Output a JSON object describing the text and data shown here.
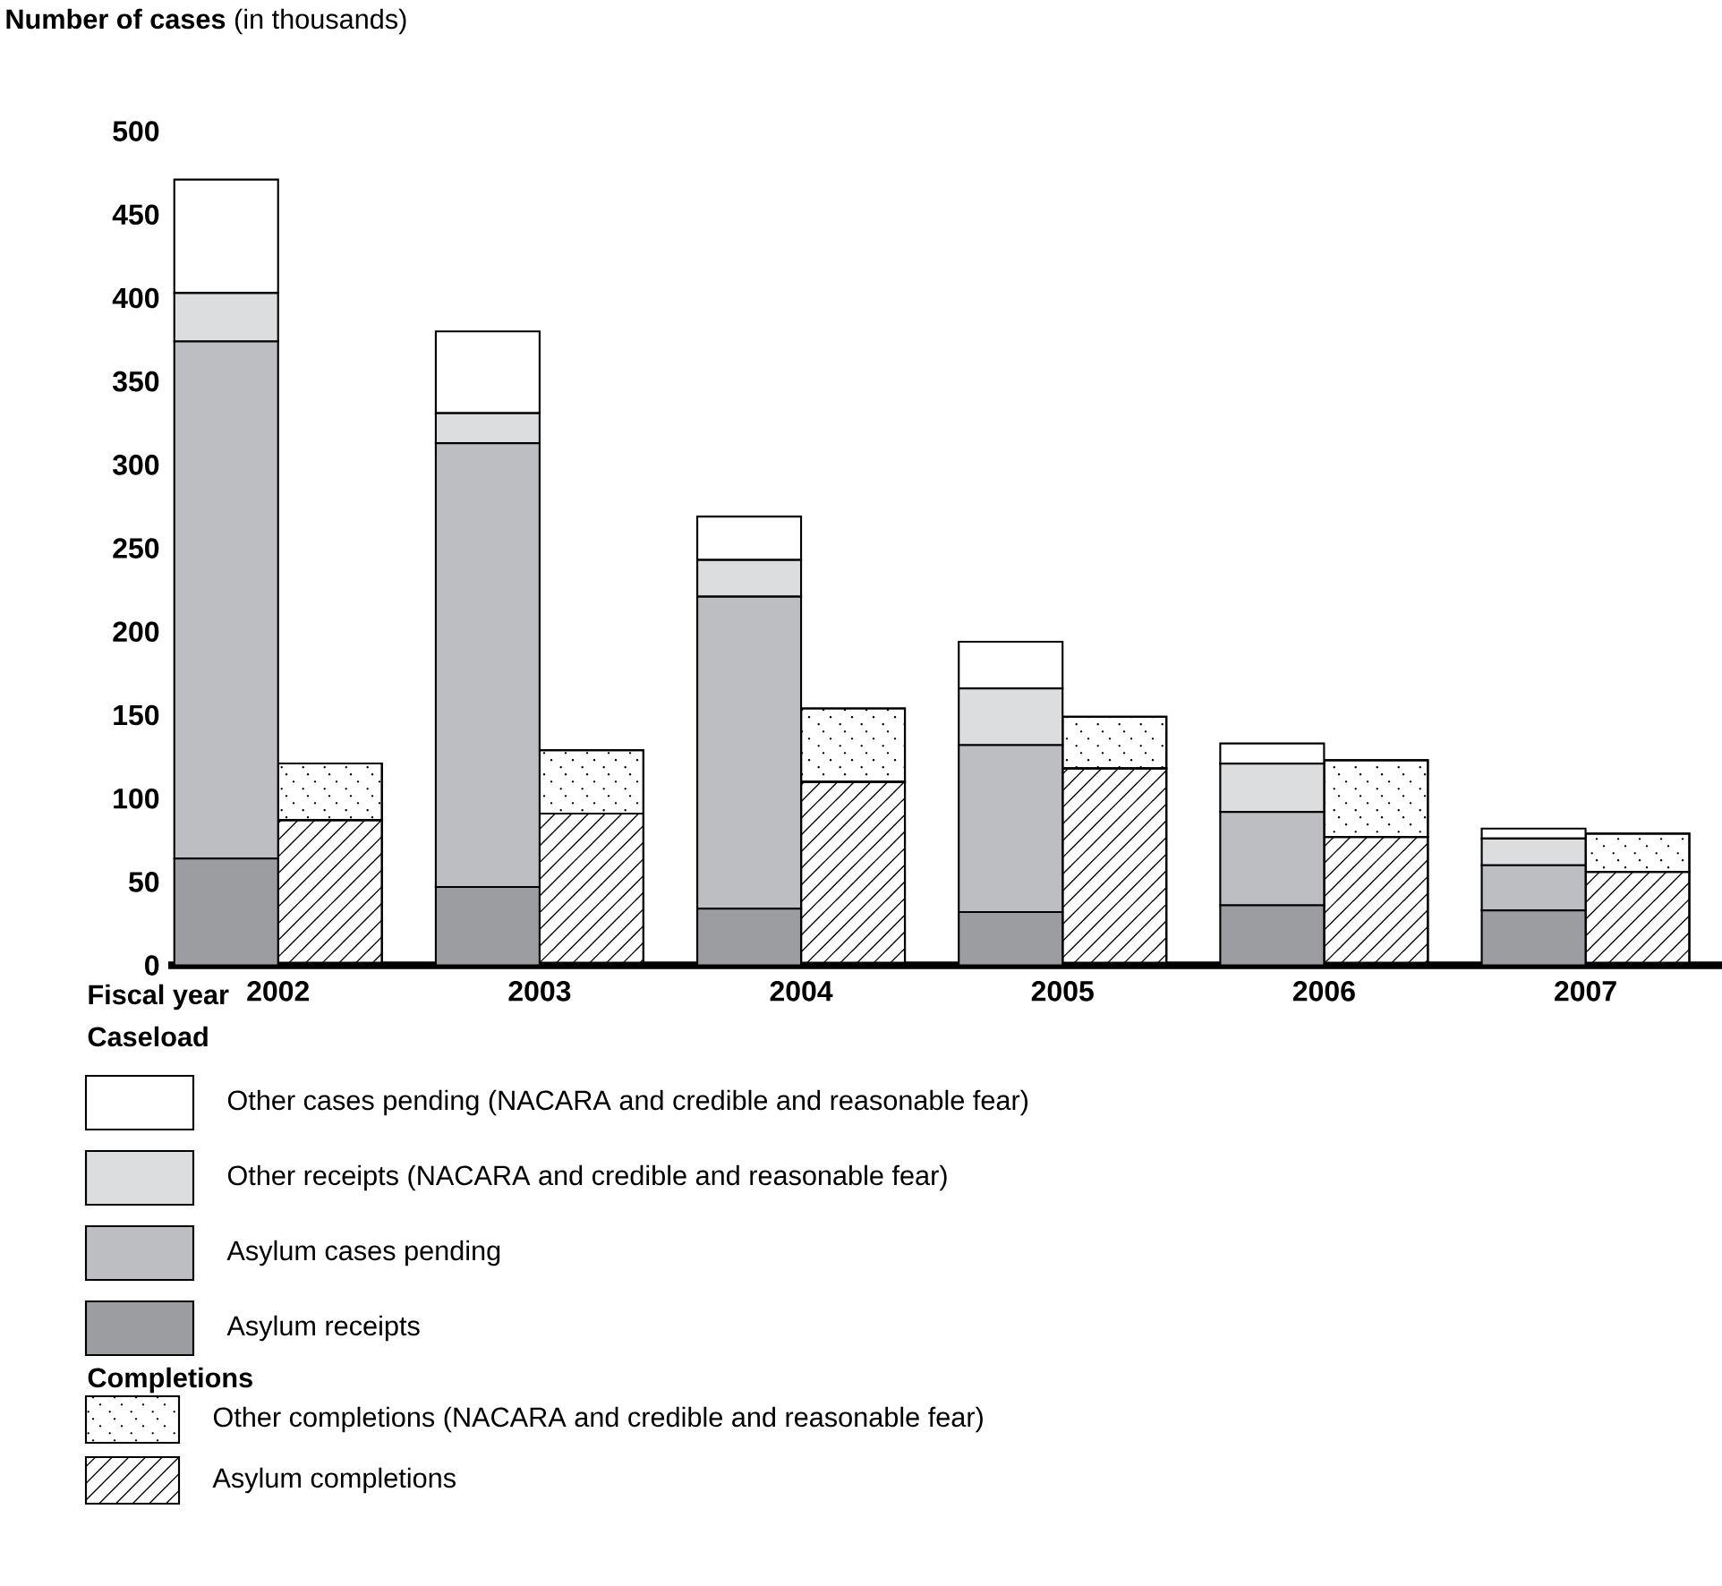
{
  "chart_data": [
    {
      "type": "bar",
      "stacked": true,
      "ylabel": "**Number of cases** (in thousands)",
      "xlabel": "Fiscal year",
      "categories": [
        "2002",
        "2003",
        "2004",
        "2005",
        "2006",
        "2007"
      ],
      "ylim": [
        0,
        500
      ],
      "yticks": [
        0,
        50,
        100,
        150,
        200,
        250,
        300,
        350,
        400,
        450,
        500
      ],
      "legend": "bottom",
      "legend_title": "Caseload",
      "series": [
        {
          "name": "Asylum receipts",
          "color": "#9c9da0",
          "values": [
            64,
            47,
            34,
            32,
            36,
            33
          ]
        },
        {
          "name": "Asylum cases pending",
          "color": "#bdbec1",
          "values": [
            310,
            266,
            187,
            100,
            56,
            27
          ]
        },
        {
          "name": "Other receipts (NACARA and credible and reasonable fear)",
          "color": "#dcdddf",
          "values": [
            29,
            18,
            22,
            34,
            29,
            16
          ]
        },
        {
          "name": "Other cases pending (NACARA and credible and reasonable fear)",
          "color": "#ffffff",
          "values": [
            68,
            49,
            26,
            28,
            12,
            6
          ]
        }
      ]
    },
    {
      "type": "bar",
      "stacked": true,
      "categories": [
        "2002",
        "2003",
        "2004",
        "2005",
        "2006",
        "2007"
      ],
      "ylim": [
        0,
        500
      ],
      "tick_labels": false,
      "legend": "bottom",
      "legend_title": "Completions",
      "series": [
        {
          "name": "Asylum completions",
          "color": "#ffffff",
          "values": [
            87,
            91,
            110,
            118,
            77,
            56
          ]
        },
        {
          "name": "Other completions (NACARA and credible and reasonable fear)",
          "color": "#ffffff",
          "values": [
            34,
            38,
            44,
            31,
            46,
            23
          ]
        }
      ]
    }
  ]
}
